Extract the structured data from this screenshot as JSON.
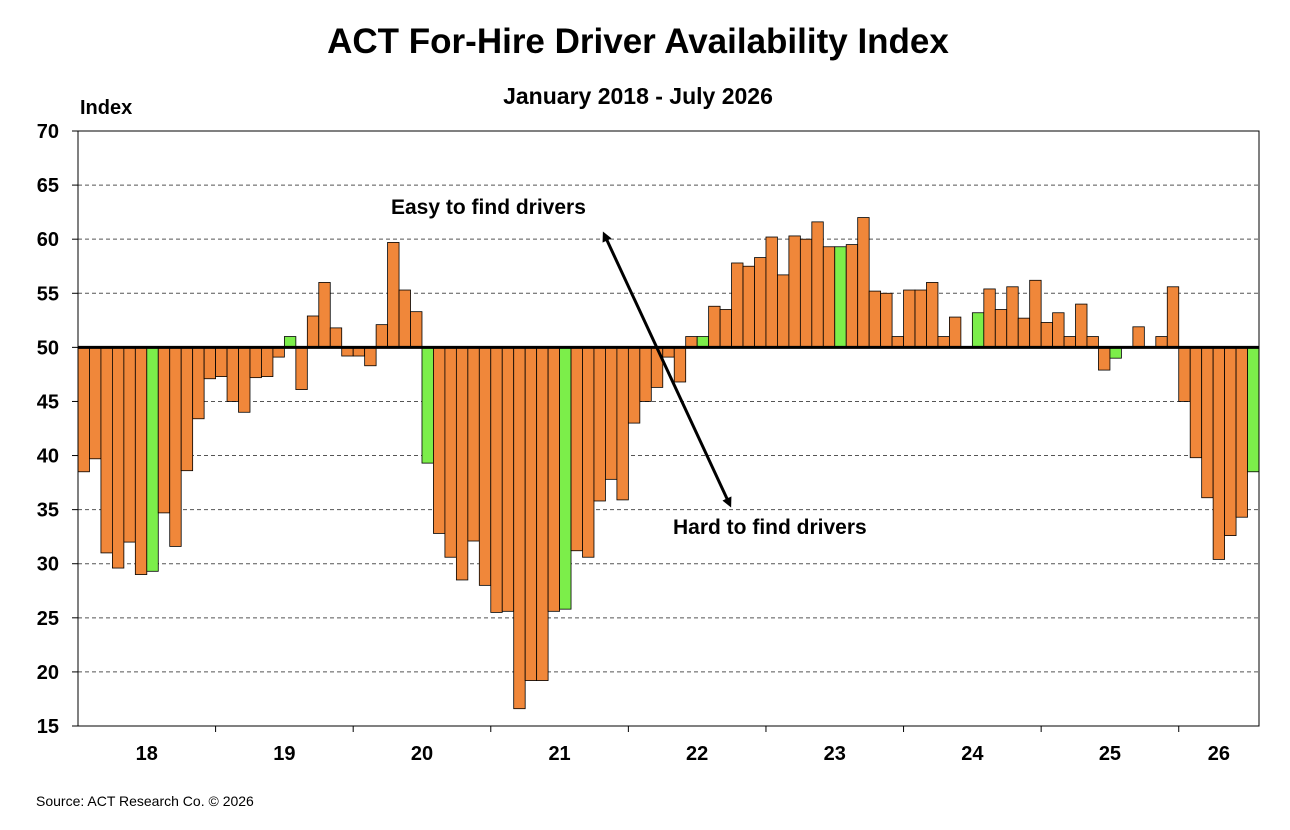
{
  "title": "ACT For-Hire Driver Availability Index",
  "subtitle": "January 2018 - July 2026",
  "source": "Source:  ACT Research Co. © 2026",
  "colors": {
    "orange": "#F0873A",
    "green": "#7CEE4A",
    "gridline": "#555555",
    "baseline": "#000000"
  },
  "chart_data": {
    "type": "bar",
    "title": "ACT For-Hire Driver Availability Index",
    "subtitle": "January 2018 - July 2026",
    "ylabel": "Index",
    "xlabel": "",
    "ylim": [
      15,
      70
    ],
    "yticks": [
      15,
      20,
      25,
      30,
      35,
      40,
      45,
      50,
      55,
      60,
      65,
      70
    ],
    "baseline": 50,
    "grid": "horizontal dashed",
    "x_tick_labels": [
      "18",
      "19",
      "20",
      "21",
      "22",
      "23",
      "24",
      "25",
      "26"
    ],
    "start_period": "January 2018",
    "annotations": [
      "Easy to find drivers",
      "Hard to find drivers"
    ],
    "values": [
      38.5,
      39.7,
      31,
      29.6,
      32,
      29,
      29.3,
      34.7,
      31.6,
      38.6,
      43.4,
      47.1,
      47.3,
      45,
      44,
      47.2,
      47.3,
      49.1,
      51,
      46.1,
      52.9,
      56,
      51.8,
      49.2,
      49.2,
      48.3,
      52.1,
      59.7,
      55.3,
      53.3,
      39.3,
      32.8,
      30.6,
      28.5,
      32.1,
      28,
      25.5,
      25.6,
      16.6,
      19.2,
      19.2,
      25.6,
      25.8,
      31.2,
      30.6,
      35.8,
      37.8,
      35.9,
      43,
      45,
      46.3,
      49.1,
      46.8,
      51,
      51,
      53.8,
      53.5,
      57.8,
      57.5,
      58.3,
      60.2,
      56.7,
      60.3,
      60,
      61.6,
      59.3,
      59.3,
      59.5,
      62,
      55.2,
      55,
      51,
      55.3,
      55.3,
      56,
      51,
      52.8,
      50,
      53.2,
      55.4,
      53.5,
      55.6,
      52.7,
      56.2,
      52.3,
      53.2,
      51,
      54,
      51,
      47.9,
      49,
      50,
      51.9,
      50,
      51,
      55.6,
      45,
      39.8,
      36.1,
      30.4,
      32.6,
      34.3,
      38.5
    ],
    "green_months": [
      6,
      18,
      30,
      42,
      54,
      66,
      78,
      90,
      102
    ]
  }
}
